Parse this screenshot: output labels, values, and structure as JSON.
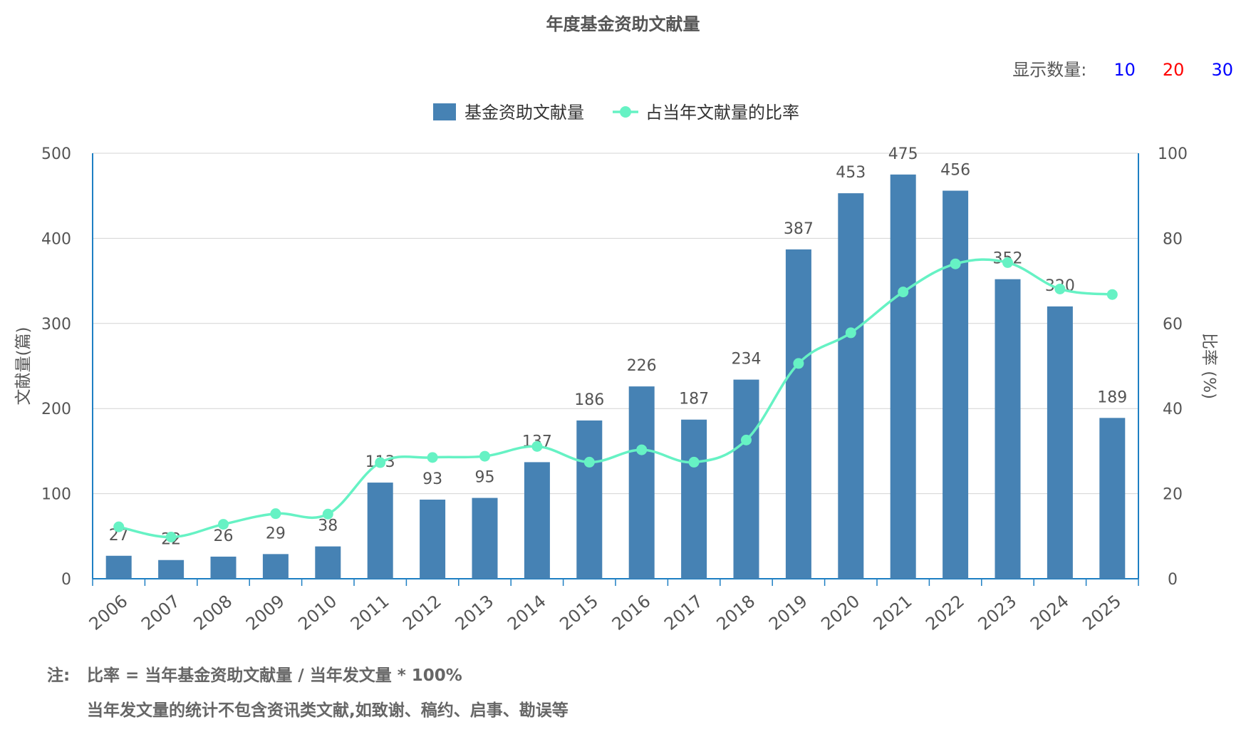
{
  "title": "年度基金资助文献量",
  "count_selector": {
    "label": "显示数量:",
    "options": [
      {
        "label": "10",
        "color": "#0000ff"
      },
      {
        "label": "20",
        "color": "#ff0000"
      },
      {
        "label": "30",
        "color": "#0000ff"
      }
    ]
  },
  "notes": {
    "prefix": "注:",
    "line1": "比率 = 当年基金资助文献量 / 当年发文量 * 100%",
    "line2": "当年发文量的统计不包含资讯类文献,如致谢、稿约、启事、勘误等"
  },
  "colors": {
    "bar": "#4682b4",
    "line": "#66f2c4",
    "axis": "#1e7fc3",
    "grid": "#d4d4d4"
  },
  "chart_data": {
    "type": "bar",
    "categories": [
      "2006",
      "2007",
      "2008",
      "2009",
      "2010",
      "2011",
      "2012",
      "2013",
      "2014",
      "2015",
      "2016",
      "2017",
      "2018",
      "2019",
      "2020",
      "2021",
      "2022",
      "2023",
      "2024",
      "2025"
    ],
    "series": [
      {
        "name": "基金资助文献量",
        "type": "bar",
        "axis": "left",
        "values": [
          27,
          22,
          26,
          29,
          38,
          113,
          93,
          95,
          137,
          186,
          226,
          187,
          234,
          387,
          453,
          475,
          456,
          352,
          320,
          189
        ]
      },
      {
        "name": "占当年文献量的比率",
        "type": "line",
        "axis": "right",
        "values": [
          12.2,
          9.8,
          12.8,
          15.3,
          15.2,
          27.3,
          28.5,
          28.8,
          31.1,
          27.4,
          30.3,
          27.4,
          32.6,
          50.6,
          57.8,
          67.4,
          74.0,
          74.3,
          68.1,
          66.8
        ]
      }
    ],
    "ylabel": "文献量(篇)",
    "y2label": "比率 (%)",
    "ylim": [
      0,
      500
    ],
    "y2lim": [
      0,
      100
    ],
    "yticks": [
      "0",
      "100",
      "200",
      "300",
      "400",
      "500"
    ],
    "y2ticks": [
      "0",
      "20",
      "40",
      "60",
      "80",
      "100"
    ],
    "grid": true,
    "legend_position": "top-center"
  }
}
